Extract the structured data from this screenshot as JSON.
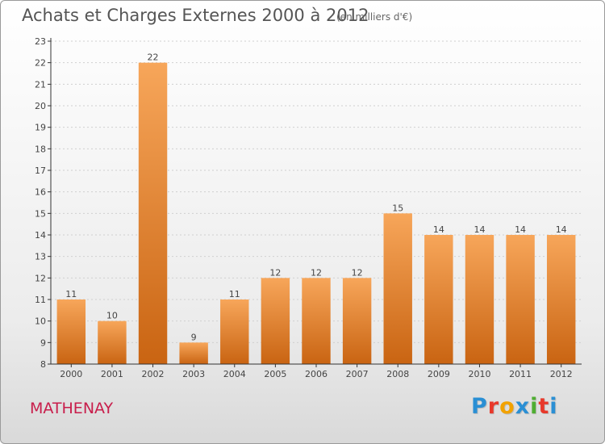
{
  "header": {
    "title": "Achats et Charges Externes 2000 à 2012",
    "subtitle": "(en milliers d'€)"
  },
  "footer": {
    "place": "MATHENAY",
    "logo": {
      "text": "Proxiti",
      "letter_colors": [
        "#2a8fd4",
        "#e8392b",
        "#f2a200",
        "#2a8fd4",
        "#4fae32",
        "#e8392b",
        "#2a8fd4"
      ]
    }
  },
  "colors": {
    "bar_top": "#f7a65a",
    "bar_bottom": "#c96412",
    "gridline": "#d0d0d0",
    "axis": "#333333"
  },
  "chart_data": {
    "type": "bar",
    "title": "Achats et Charges Externes 2000 à 2012",
    "subtitle": "(en milliers d'€)",
    "categories": [
      "2000",
      "2001",
      "2002",
      "2003",
      "2004",
      "2005",
      "2006",
      "2007",
      "2008",
      "2009",
      "2010",
      "2011",
      "2012"
    ],
    "values": [
      11,
      10,
      22,
      9,
      11,
      12,
      12,
      12,
      15,
      14,
      14,
      14,
      14
    ],
    "data_labels": [
      "11",
      "10",
      "22",
      "9",
      "11",
      "12",
      "12",
      "12",
      "15",
      "14",
      "14",
      "14",
      "14"
    ],
    "yticks": [
      "8",
      "9",
      "10",
      "11",
      "12",
      "13",
      "14",
      "15",
      "16",
      "17",
      "18",
      "19",
      "20",
      "21",
      "22",
      "23"
    ],
    "ylim": [
      8,
      23
    ],
    "grid": true,
    "xlabel": "",
    "ylabel": ""
  }
}
